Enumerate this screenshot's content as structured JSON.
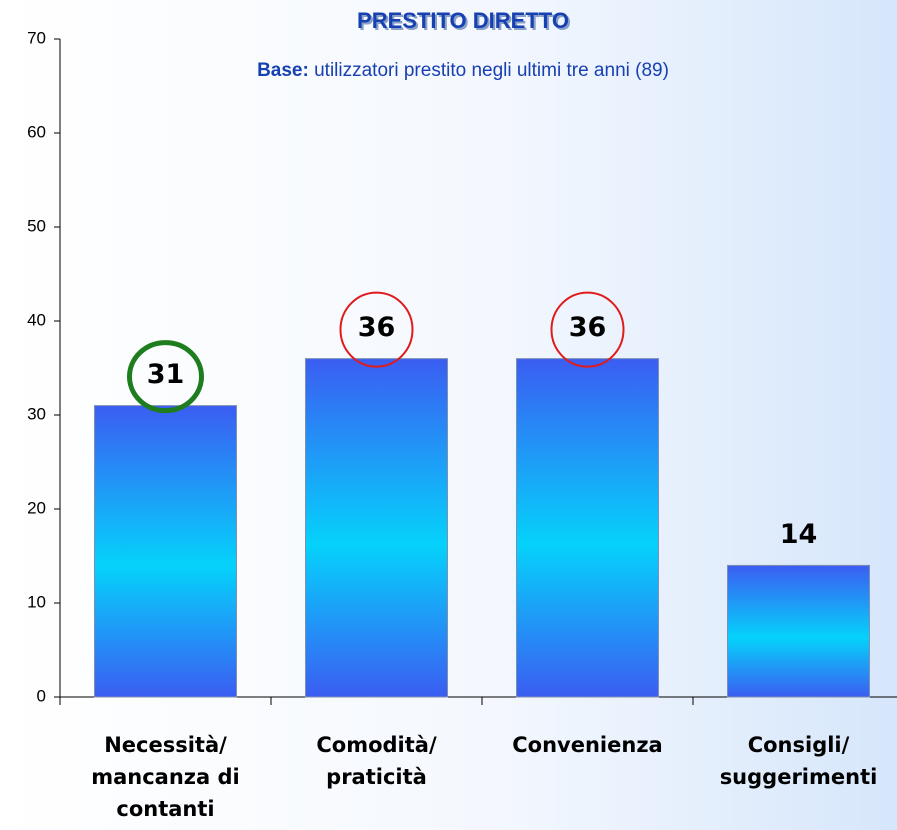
{
  "chart_data": {
    "type": "bar",
    "title": "PRESTITO DIRETTO",
    "subtitle_label": "Base:",
    "subtitle": "utilizzatori prestito negli ultimi tre anni (89)",
    "categories": [
      [
        "Necessità/",
        "mancanza di",
        "contanti"
      ],
      [
        "Comodità/",
        "praticità"
      ],
      [
        "Convenienza"
      ],
      [
        "Consigli/",
        "suggerimenti"
      ]
    ],
    "values": [
      31,
      36,
      36,
      14
    ],
    "label_circle_colors": [
      "#1e7d1e",
      "#e01b1b",
      "#e01b1b",
      null
    ],
    "ylim": [
      0,
      70
    ],
    "yticks": [
      0,
      10,
      20,
      30,
      40,
      50,
      60,
      70
    ]
  }
}
